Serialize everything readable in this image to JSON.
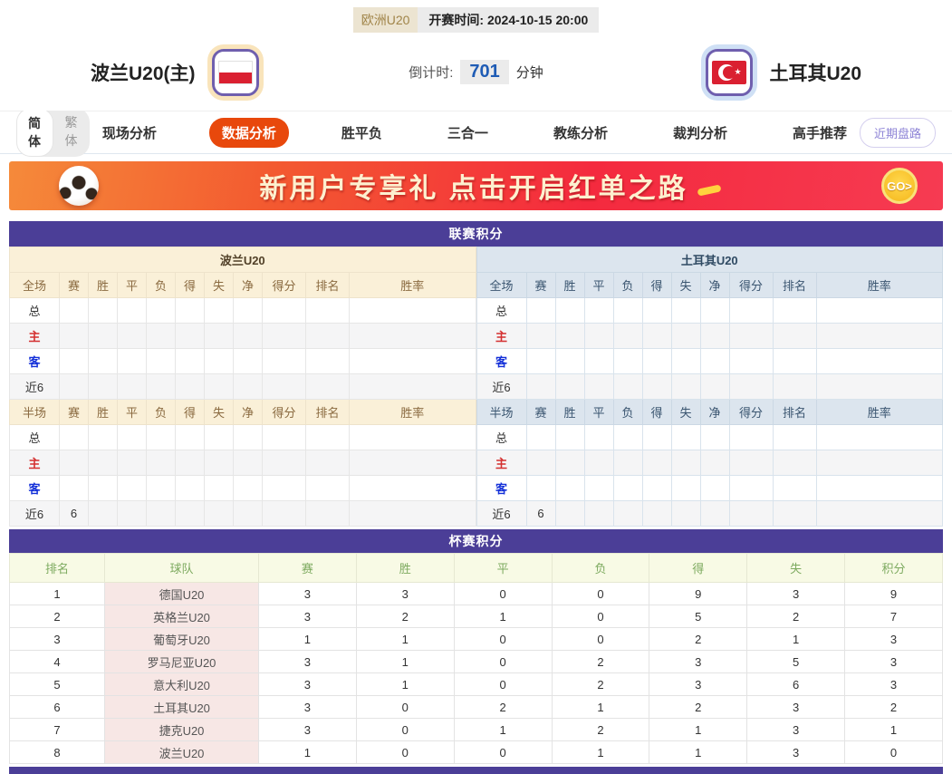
{
  "header": {
    "league": "欧洲U20",
    "kickoff_label": "开赛时间:",
    "kickoff_time": "2024-10-15 20:00",
    "home_team": "波兰U20(主)",
    "away_team": "土耳其U20",
    "countdown_label": "倒计时:",
    "countdown_value": "701",
    "countdown_unit": "分钟"
  },
  "nav": {
    "lang_simplified": "简体",
    "lang_traditional": "繁体",
    "tabs": [
      {
        "label": "现场分析",
        "active": false
      },
      {
        "label": "数据分析",
        "active": true
      },
      {
        "label": "胜平负",
        "active": false
      },
      {
        "label": "三合一",
        "active": false
      },
      {
        "label": "教练分析",
        "active": false
      },
      {
        "label": "裁判分析",
        "active": false
      },
      {
        "label": "高手推荐",
        "active": false
      }
    ],
    "recent_trends_button": "近期盘路"
  },
  "banner": {
    "text": "新用户专享礼  点击开启红单之路",
    "go_label": "GO>"
  },
  "league_table": {
    "title": "联赛积分",
    "columns_full": [
      "全场",
      "赛",
      "胜",
      "平",
      "负",
      "得",
      "失",
      "净",
      "得分",
      "排名",
      "胜率"
    ],
    "columns_half": [
      "半场",
      "赛",
      "胜",
      "平",
      "负",
      "得",
      "失",
      "净",
      "得分",
      "排名",
      "胜率"
    ],
    "home": {
      "team": "波兰U20",
      "full_rows": [
        [
          "总",
          "",
          "",
          "",
          "",
          "",
          "",
          "",
          "",
          "",
          ""
        ],
        [
          "主",
          "",
          "",
          "",
          "",
          "",
          "",
          "",
          "",
          "",
          ""
        ],
        [
          "客",
          "",
          "",
          "",
          "",
          "",
          "",
          "",
          "",
          "",
          ""
        ],
        [
          "近6",
          "",
          "",
          "",
          "",
          "",
          "",
          "",
          "",
          "",
          ""
        ]
      ],
      "half_rows": [
        [
          "总",
          "",
          "",
          "",
          "",
          "",
          "",
          "",
          "",
          "",
          ""
        ],
        [
          "主",
          "",
          "",
          "",
          "",
          "",
          "",
          "",
          "",
          "",
          ""
        ],
        [
          "客",
          "",
          "",
          "",
          "",
          "",
          "",
          "",
          "",
          "",
          ""
        ],
        [
          "近6",
          "6",
          "",
          "",
          "",
          "",
          "",
          "",
          "",
          "",
          ""
        ]
      ]
    },
    "away": {
      "team": "土耳其U20",
      "full_rows": [
        [
          "总",
          "",
          "",
          "",
          "",
          "",
          "",
          "",
          "",
          "",
          ""
        ],
        [
          "主",
          "",
          "",
          "",
          "",
          "",
          "",
          "",
          "",
          "",
          ""
        ],
        [
          "客",
          "",
          "",
          "",
          "",
          "",
          "",
          "",
          "",
          "",
          ""
        ],
        [
          "近6",
          "",
          "",
          "",
          "",
          "",
          "",
          "",
          "",
          "",
          ""
        ]
      ],
      "half_rows": [
        [
          "总",
          "",
          "",
          "",
          "",
          "",
          "",
          "",
          "",
          "",
          ""
        ],
        [
          "主",
          "",
          "",
          "",
          "",
          "",
          "",
          "",
          "",
          "",
          ""
        ],
        [
          "客",
          "",
          "",
          "",
          "",
          "",
          "",
          "",
          "",
          "",
          ""
        ],
        [
          "近6",
          "6",
          "",
          "",
          "",
          "",
          "",
          "",
          "",
          "",
          ""
        ]
      ]
    }
  },
  "cup_table": {
    "title": "杯赛积分",
    "header": [
      "排名",
      "球队",
      "赛",
      "胜",
      "平",
      "负",
      "得",
      "失",
      "积分"
    ],
    "rows": [
      [
        "1",
        "德国U20",
        "3",
        "3",
        "0",
        "0",
        "9",
        "3",
        "9"
      ],
      [
        "2",
        "英格兰U20",
        "3",
        "2",
        "1",
        "0",
        "5",
        "2",
        "7"
      ],
      [
        "3",
        "葡萄牙U20",
        "1",
        "1",
        "0",
        "0",
        "2",
        "1",
        "3"
      ],
      [
        "4",
        "罗马尼亚U20",
        "3",
        "1",
        "0",
        "2",
        "3",
        "5",
        "3"
      ],
      [
        "5",
        "意大利U20",
        "3",
        "1",
        "0",
        "2",
        "3",
        "6",
        "3"
      ],
      [
        "6",
        "土耳其U20",
        "3",
        "0",
        "2",
        "1",
        "2",
        "3",
        "2"
      ],
      [
        "7",
        "捷克U20",
        "3",
        "0",
        "1",
        "2",
        "1",
        "3",
        "1"
      ],
      [
        "8",
        "波兰U20",
        "1",
        "0",
        "0",
        "1",
        "1",
        "3",
        "0"
      ]
    ]
  },
  "colors": {
    "section_purple": "#4b3e97",
    "tab_active": "#e8480c",
    "home_theme_bg": "#faf0d8",
    "away_theme_bg": "#dce5ee",
    "cup_header_bg": "#f8fae5",
    "cup_header_text": "#7daa5f",
    "team_cell_pink": "#f7e7e5",
    "countdown_blue": "#1f5cb5",
    "home_row_red": "#d43030",
    "away_row_blue": "#1430d8"
  }
}
